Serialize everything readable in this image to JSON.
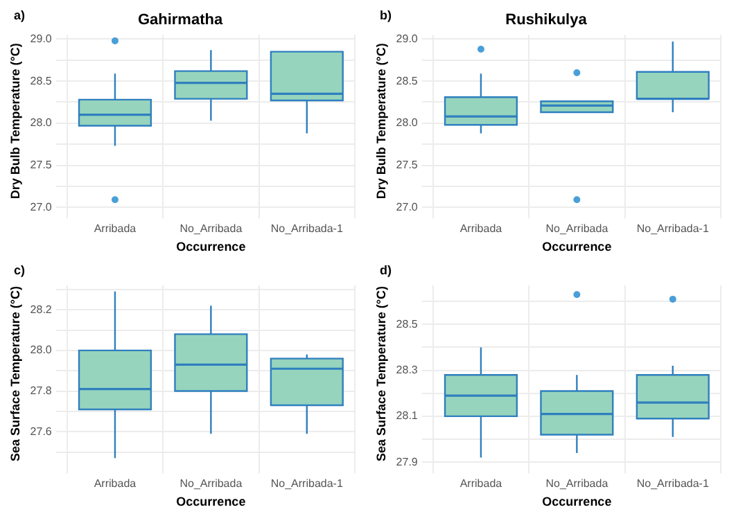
{
  "chart_data": [
    {
      "type": "box",
      "title": "Gahirmatha",
      "xlabel": "Occurrence",
      "ylabel": "Dry Bulb Temperature (°C)",
      "annotations": [
        "a)"
      ],
      "categories": [
        "Arribada",
        "No_Arribada",
        "No_Arribada-1"
      ],
      "ylim": [
        27.0,
        29.05
      ],
      "yticks": [
        {
          "value": 27.0,
          "label": "27.0"
        },
        {
          "value": 27.25,
          "label": null
        },
        {
          "value": 27.5,
          "label": "27.5"
        },
        {
          "value": 27.75,
          "label": null
        },
        {
          "value": 28.0,
          "label": "28.0"
        },
        {
          "value": 28.25,
          "label": null
        },
        {
          "value": 28.5,
          "label": "28.5"
        },
        {
          "value": 28.75,
          "label": null
        },
        {
          "value": 29.0,
          "label": "29.0"
        }
      ],
      "grid": true,
      "series": [
        {
          "color": "#96d4bd",
          "boxes": [
            {
              "low": 27.73,
              "q1": 27.97,
              "median": 28.1,
              "q3": 28.28,
              "high": 28.59,
              "outliers": [
                28.98,
                27.09
              ]
            },
            {
              "low": 28.03,
              "q1": 28.29,
              "median": 28.48,
              "q3": 28.62,
              "high": 28.87
            },
            {
              "low": 27.88,
              "q1": 28.27,
              "median": 28.35,
              "q3": 28.85,
              "high": 28.85
            }
          ]
        }
      ]
    },
    {
      "type": "box",
      "title": "Rushikulya",
      "xlabel": "Occurrence",
      "ylabel": "Dry Bulb Temperature (°C)",
      "annotations": [
        "b)"
      ],
      "categories": [
        "Arribada",
        "No_Arribada",
        "No_Arribada-1"
      ],
      "ylim": [
        27.0,
        29.05
      ],
      "yticks": [
        {
          "value": 27.0,
          "label": "27.0"
        },
        {
          "value": 27.25,
          "label": null
        },
        {
          "value": 27.5,
          "label": "27.5"
        },
        {
          "value": 27.75,
          "label": null
        },
        {
          "value": 28.0,
          "label": "28.0"
        },
        {
          "value": 28.25,
          "label": null
        },
        {
          "value": 28.5,
          "label": "28.5"
        },
        {
          "value": 28.75,
          "label": null
        },
        {
          "value": 29.0,
          "label": "29.0"
        }
      ],
      "grid": true,
      "series": [
        {
          "color": "#96d4bd",
          "boxes": [
            {
              "low": 27.88,
              "q1": 27.98,
              "median": 28.08,
              "q3": 28.31,
              "high": 28.59,
              "outliers": [
                28.88
              ]
            },
            {
              "low": 28.13,
              "q1": 28.13,
              "median": 28.21,
              "q3": 28.26,
              "high": 28.26,
              "outliers": [
                28.6,
                27.09
              ]
            },
            {
              "low": 28.13,
              "q1": 28.29,
              "median": 28.29,
              "q3": 28.61,
              "high": 28.97
            }
          ]
        }
      ]
    },
    {
      "type": "box",
      "xlabel": "Occurrence",
      "ylabel": "Sea Surface Temperature (°C)",
      "annotations": [
        "c)"
      ],
      "categories": [
        "Arribada",
        "No_Arribada",
        "No_Arribada-1"
      ],
      "ylim": [
        27.45,
        28.32
      ],
      "yticks": [
        {
          "value": 27.5,
          "label": null
        },
        27.6,
        {
          "value": 27.7,
          "label": null
        },
        27.8,
        {
          "value": 27.9,
          "label": null
        },
        {
          "value": 28.0,
          "label": "28.0"
        },
        {
          "value": 28.1,
          "label": null
        },
        28.2,
        {
          "value": 28.3,
          "label": null
        }
      ],
      "grid": true,
      "series": [
        {
          "color": "#96d4bd",
          "boxes": [
            {
              "low": 27.47,
              "q1": 27.71,
              "median": 27.81,
              "q3": 28.0,
              "high": 28.29
            },
            {
              "low": 27.59,
              "q1": 27.8,
              "median": 27.93,
              "q3": 28.08,
              "high": 28.22
            },
            {
              "low": 27.59,
              "q1": 27.73,
              "median": 27.91,
              "q3": 27.96,
              "high": 27.98
            }
          ]
        }
      ]
    },
    {
      "type": "box",
      "xlabel": "Occurrence",
      "ylabel": "Sea Surface Temperature (°C)",
      "annotations": [
        "d)"
      ],
      "categories": [
        "Arribada",
        "No_Arribada",
        "No_Arribada-1"
      ],
      "ylim": [
        27.9,
        28.67
      ],
      "yticks": [
        27.9,
        {
          "value": 28.0,
          "label": null
        },
        28.1,
        {
          "value": 28.2,
          "label": null
        },
        28.3,
        {
          "value": 28.4,
          "label": null
        },
        28.5,
        {
          "value": 28.6,
          "label": null
        }
      ],
      "grid": true,
      "series": [
        {
          "color": "#96d4bd",
          "boxes": [
            {
              "low": 27.92,
              "q1": 28.1,
              "median": 28.19,
              "q3": 28.28,
              "high": 28.4
            },
            {
              "low": 27.94,
              "q1": 28.02,
              "median": 28.11,
              "q3": 28.21,
              "high": 28.28,
              "outliers": [
                28.63
              ]
            },
            {
              "low": 28.01,
              "q1": 28.09,
              "median": 28.16,
              "q3": 28.28,
              "high": 28.32,
              "outliers": [
                28.61
              ]
            }
          ]
        }
      ]
    }
  ]
}
